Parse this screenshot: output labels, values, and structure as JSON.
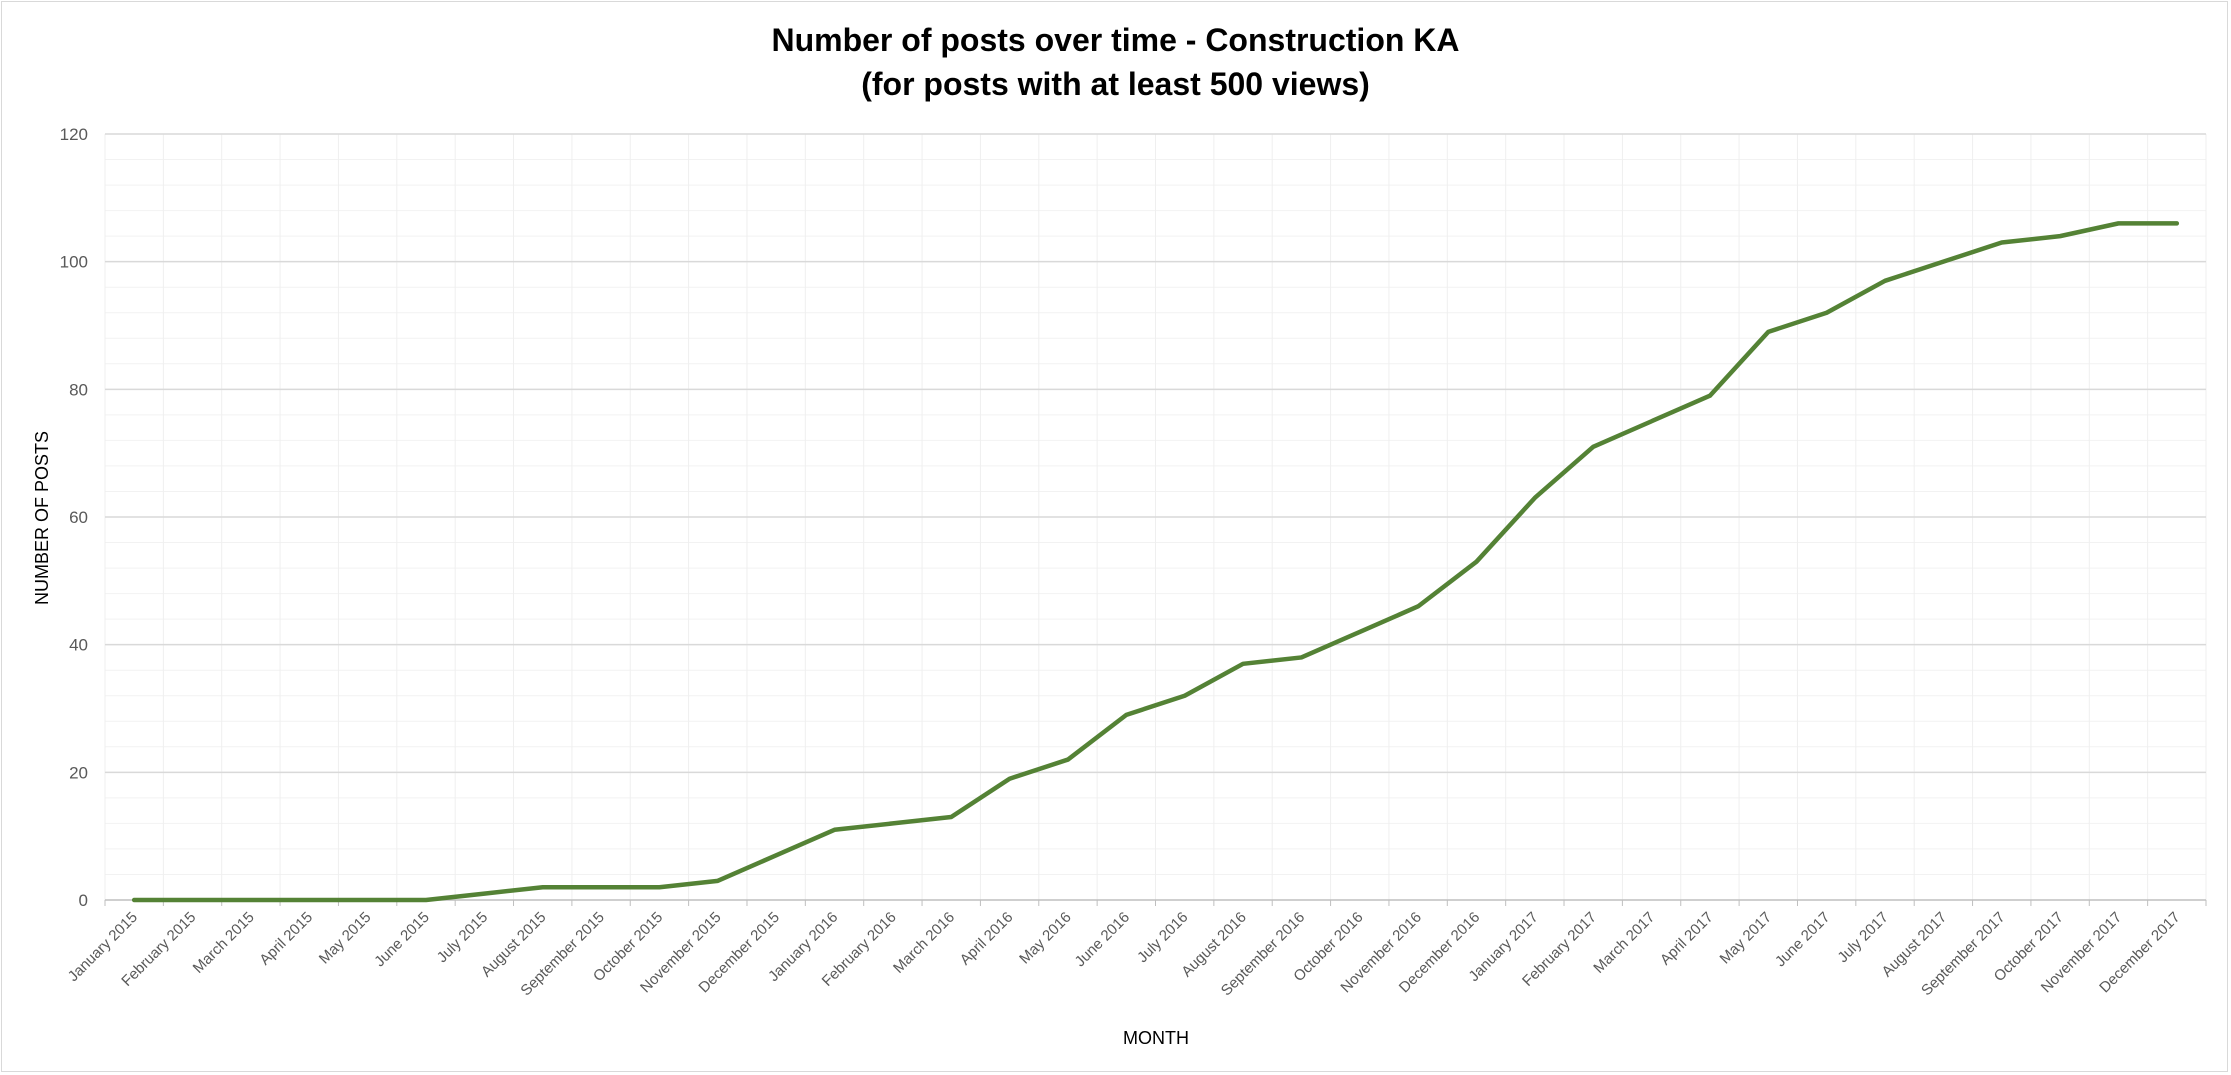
{
  "chart_data": {
    "type": "line",
    "title": [
      "Number of posts over time - Construction KA",
      "(for posts with at least 500 views)"
    ],
    "xlabel": "MONTH",
    "ylabel": "NUMBER OF POSTS",
    "ylim": [
      0,
      120
    ],
    "y_major_step": 20,
    "y_minor_step": 4,
    "grid": true,
    "legend": "none",
    "line_color": "#548235",
    "categories": [
      "January 2015",
      "February 2015",
      "March 2015",
      "April 2015",
      "May 2015",
      "June 2015",
      "July 2015",
      "August 2015",
      "September 2015",
      "October 2015",
      "November 2015",
      "December 2015",
      "January 2016",
      "February 2016",
      "March 2016",
      "April 2016",
      "May 2016",
      "June 2016",
      "July 2016",
      "August 2016",
      "September 2016",
      "October 2016",
      "November 2016",
      "December 2016",
      "January 2017",
      "February 2017",
      "March 2017",
      "April 2017",
      "May 2017",
      "June 2017",
      "July 2017",
      "August 2017",
      "September 2017",
      "October 2017",
      "November 2017",
      "December 2017"
    ],
    "series": [
      {
        "name": "Number of posts",
        "values": [
          0,
          0,
          0,
          0,
          0,
          0,
          1,
          2,
          2,
          2,
          3,
          7,
          11,
          12,
          13,
          19,
          22,
          29,
          32,
          37,
          38,
          42,
          46,
          53,
          63,
          71,
          75,
          79,
          89,
          92,
          97,
          100,
          103,
          104,
          106,
          106
        ]
      }
    ]
  }
}
